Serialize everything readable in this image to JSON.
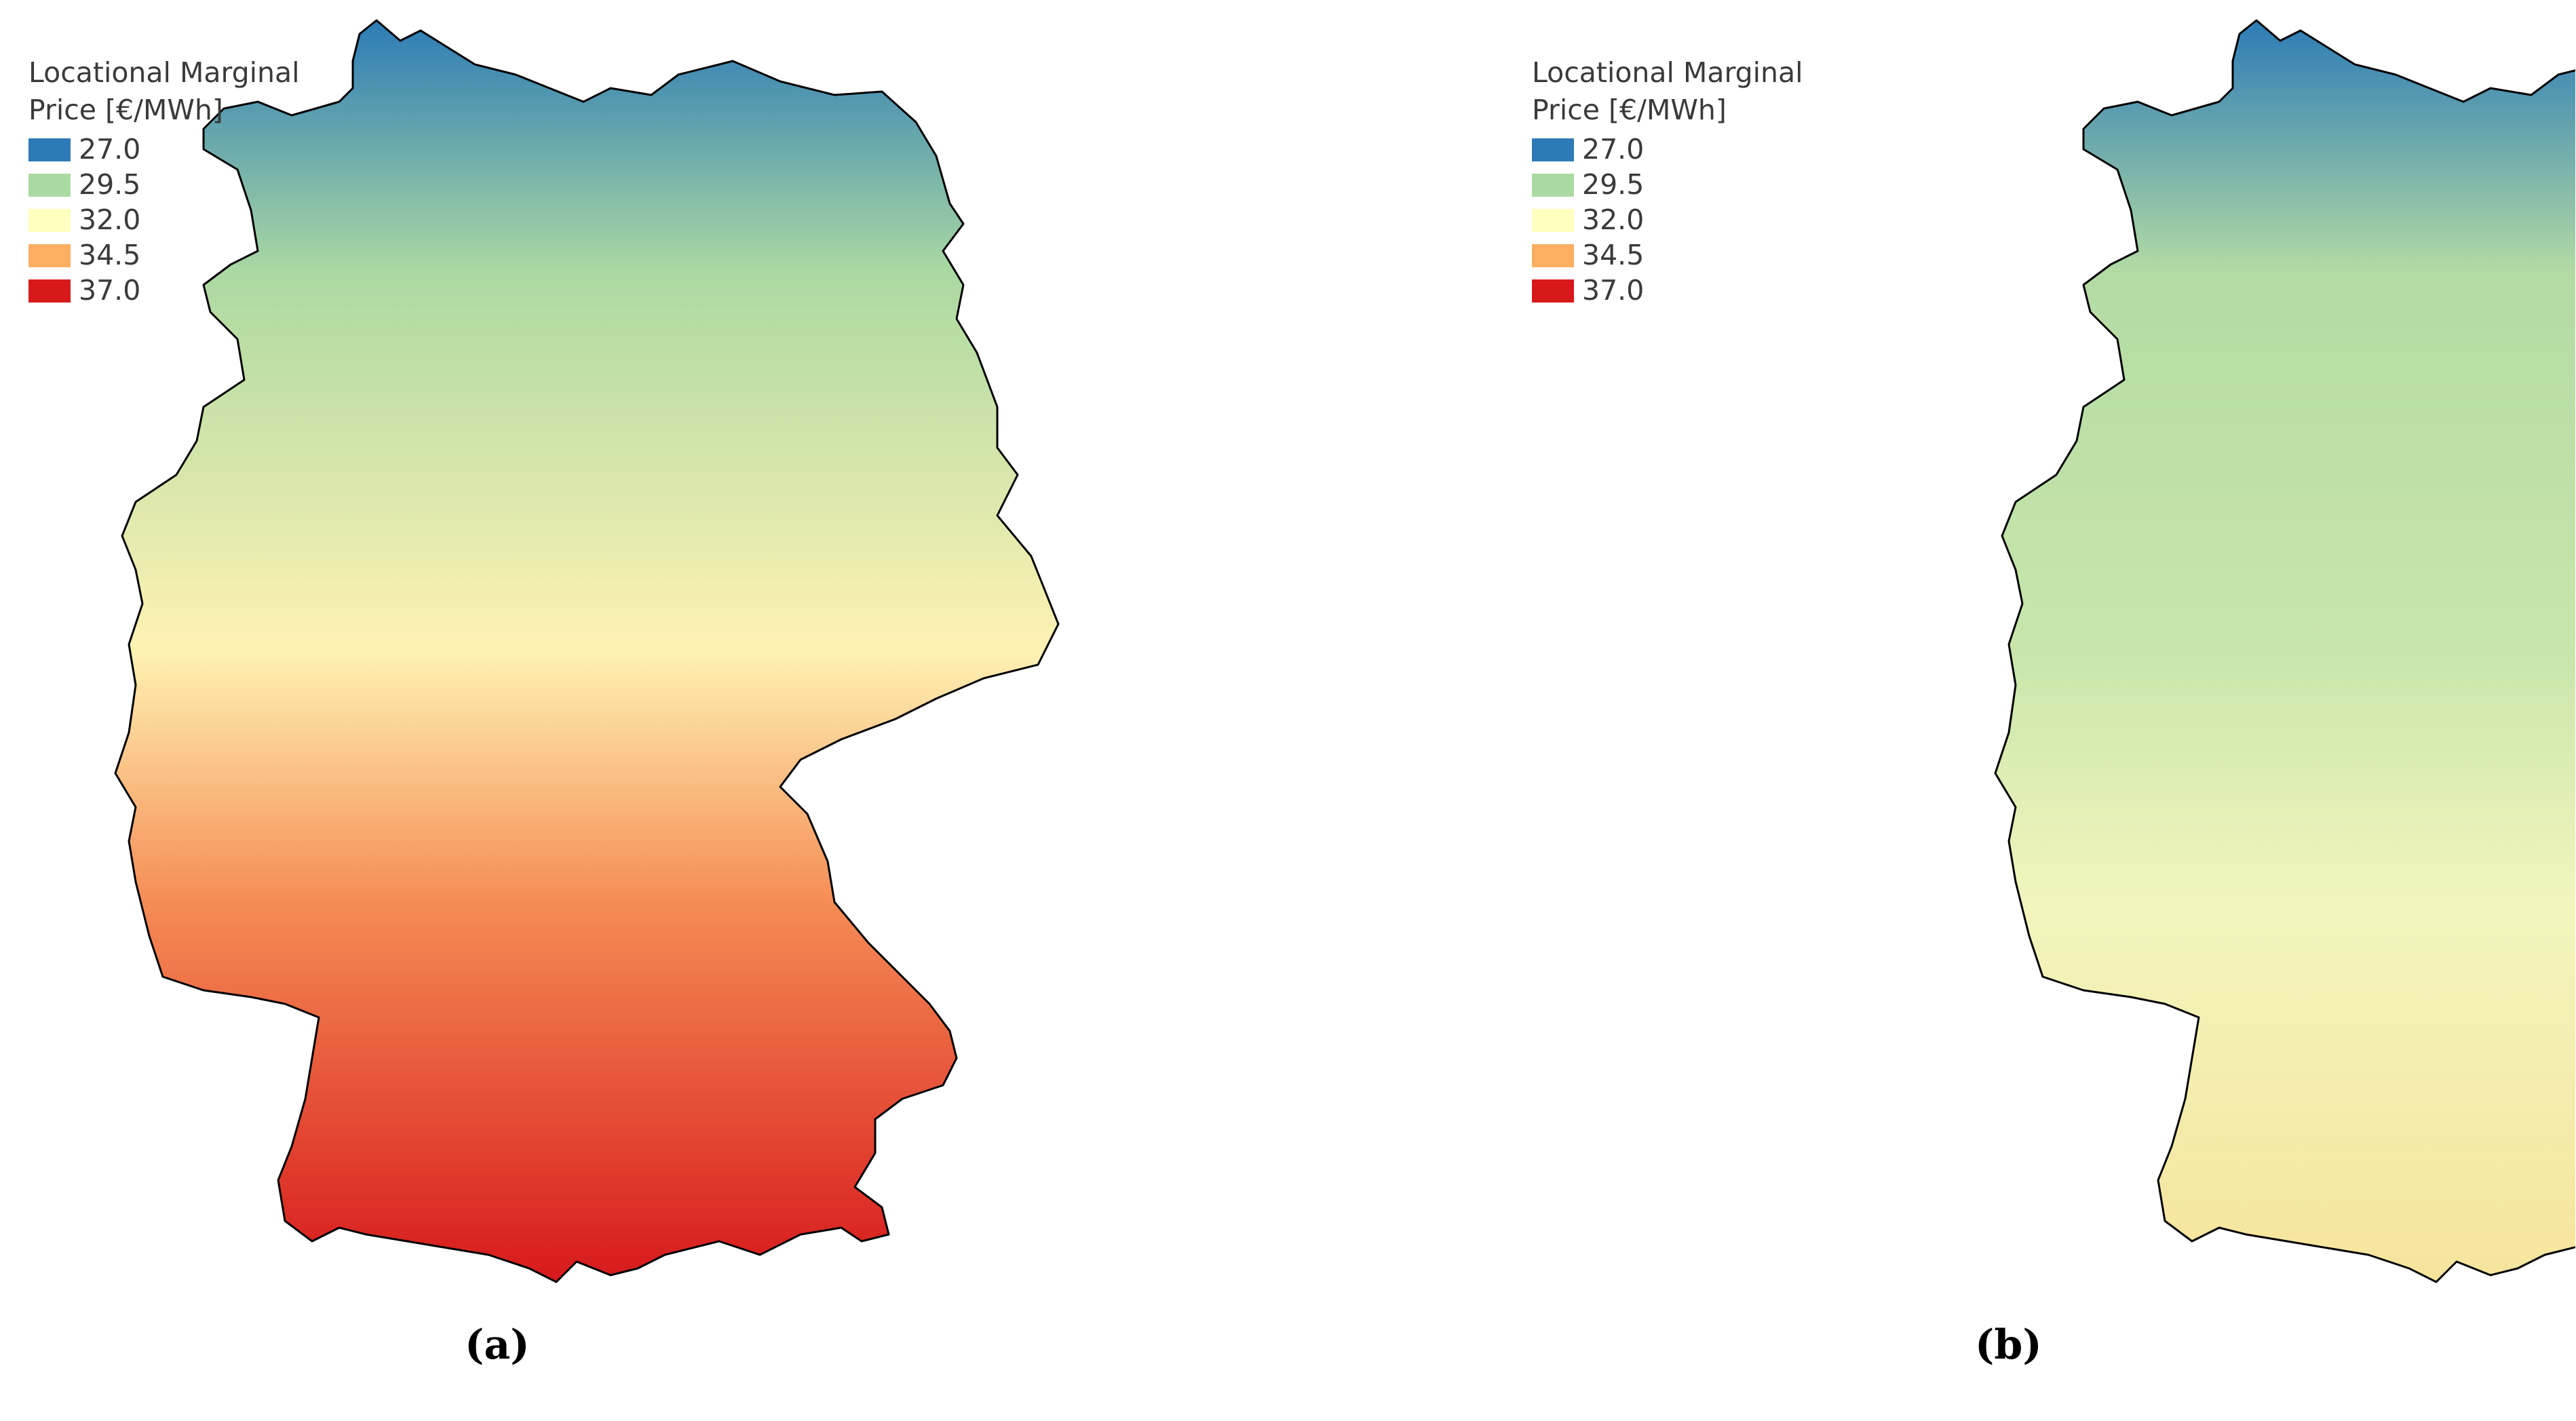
{
  "legend": {
    "title": "Locational Marginal\nPrice [€/MWh]",
    "entries": [
      {
        "label": "27.0",
        "color": "#2c7bb6"
      },
      {
        "label": "29.5",
        "color": "#abd9a2"
      },
      {
        "label": "32.0",
        "color": "#ffffbf"
      },
      {
        "label": "34.5",
        "color": "#fdae61"
      },
      {
        "label": "37.0",
        "color": "#d7191c"
      }
    ]
  },
  "panels": [
    {
      "label": "(a)",
      "gradient": {
        "north": "#2c7bb6",
        "upper": "#abd9a2",
        "middle": "#fff2b3",
        "lower": "#f58c55",
        "south": "#d7191c"
      }
    },
    {
      "label": "(b)",
      "gradient": {
        "north": "#2c7bb6",
        "upper": "#b3dba4",
        "middle": "#c8e6aa",
        "lower": "#f2f5bd",
        "south": "#f6e49c"
      }
    }
  ]
}
